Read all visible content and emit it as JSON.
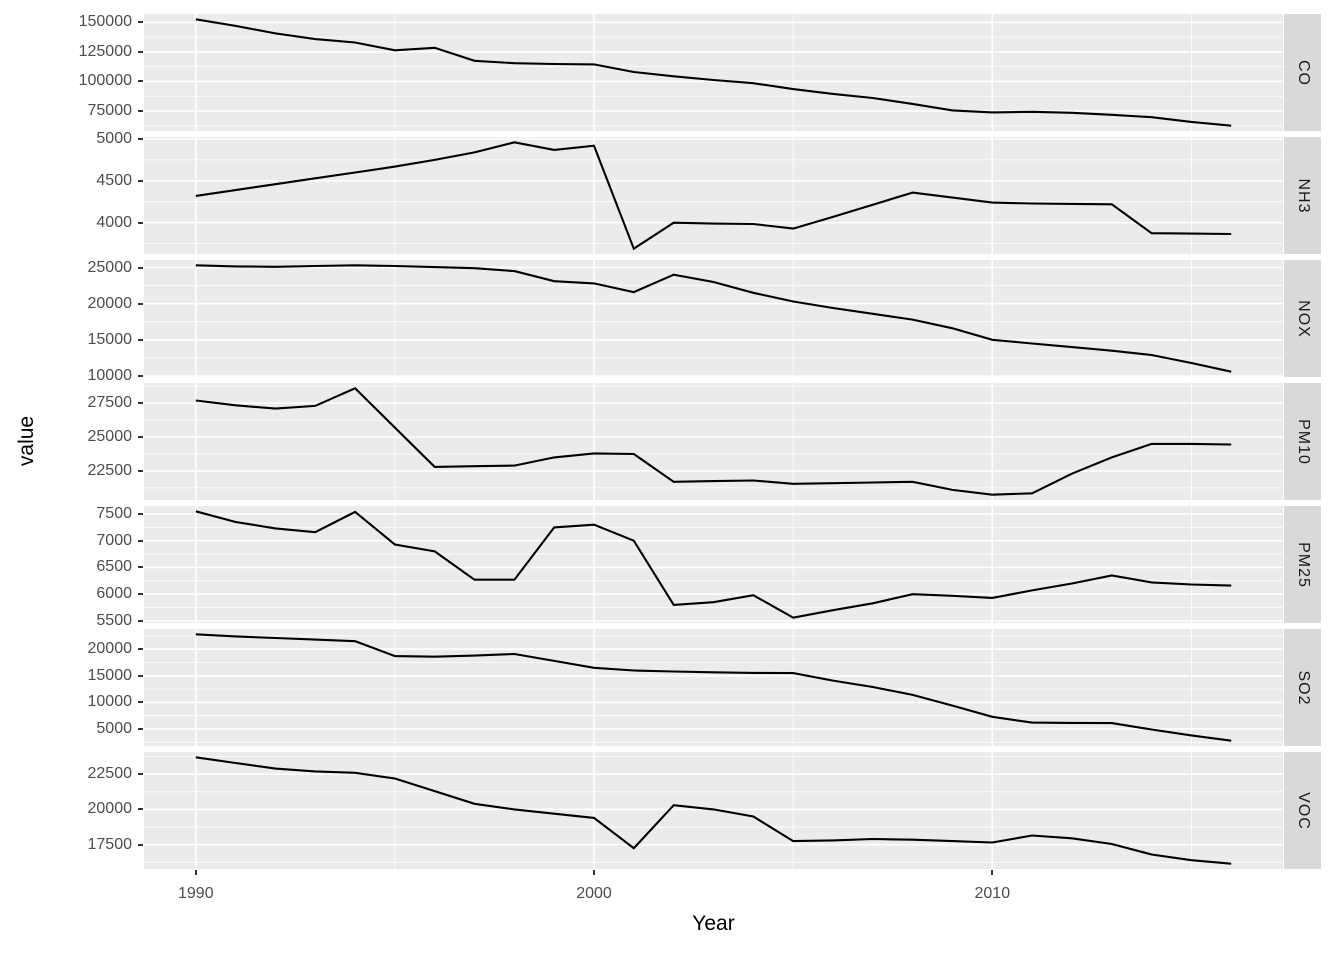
{
  "figure": {
    "y_axis_title": "value",
    "x_axis_title": "Year",
    "x_tick_labels": [
      "1990",
      "2000",
      "2010"
    ],
    "x_tick_values": [
      1990,
      2000,
      2010
    ]
  },
  "colors": {
    "background": "#FFFFFF",
    "panel_background": "#EBEBEB",
    "grid_major": "#FFFFFF",
    "grid_minor": "#FFFFFF",
    "strip_background": "#D9D9D9",
    "strip_text": "#1A1A1A",
    "axis_text": "#4D4D4D",
    "axis_title": "#000000",
    "tick_mark": "#333333",
    "line": "#000000"
  },
  "chart_data": {
    "type": "line",
    "title": "",
    "xlabel": "Year",
    "ylabel": "value",
    "legend": "none",
    "facet_strip_position": "right",
    "grid": "major-and-minor-white-on-grey",
    "xlim": [
      1988.7,
      2017.3
    ],
    "x_major_gridlines": [
      1990,
      2000,
      2010
    ],
    "x_minor_gridlines": [
      1995,
      2005,
      2015
    ],
    "x": [
      1990,
      1991,
      1992,
      1993,
      1994,
      1995,
      1996,
      1997,
      1998,
      1999,
      2000,
      2001,
      2002,
      2003,
      2004,
      2005,
      2006,
      2007,
      2008,
      2009,
      2010,
      2011,
      2012,
      2013,
      2014,
      2015,
      2016
    ],
    "facets": [
      {
        "label": "CO",
        "ytick_values": [
          75000,
          100000,
          125000,
          150000
        ],
        "ytick_labels": [
          "75000",
          "100000",
          "125000",
          "150000"
        ],
        "values": [
          152500,
          146900,
          140600,
          135800,
          132900,
          126300,
          128400,
          117400,
          115400,
          114700,
          114400,
          108000,
          104300,
          101200,
          98500,
          93500,
          89500,
          86000,
          81000,
          75500,
          73800,
          74300,
          73500,
          71800,
          69800,
          65800,
          62600
        ]
      },
      {
        "label": "NH3",
        "ytick_values": [
          4000,
          4500,
          5000
        ],
        "ytick_labels": [
          "4000",
          "4500",
          "5000"
        ],
        "values": [
          4320,
          4390,
          4460,
          4530,
          4600,
          4670,
          4750,
          4840,
          4960,
          4870,
          4920,
          3690,
          4000,
          3990,
          3985,
          3930,
          4070,
          4215,
          4360,
          4300,
          4240,
          4230,
          4225,
          4220,
          3875,
          3870,
          3865
        ]
      },
      {
        "label": "NOX",
        "ytick_values": [
          10000,
          15000,
          20000,
          25000
        ],
        "ytick_labels": [
          "10000",
          "15000",
          "20000",
          "25000"
        ],
        "values": [
          25300,
          25150,
          25100,
          25200,
          25300,
          25200,
          25050,
          24900,
          24500,
          23100,
          22800,
          21600,
          24000,
          23000,
          21500,
          20300,
          19400,
          18600,
          17800,
          16600,
          15000,
          14500,
          14000,
          13500,
          12900,
          11800,
          10600
        ]
      },
      {
        "label": "PM10",
        "ytick_values": [
          22500,
          25000,
          27500
        ],
        "ytick_labels": [
          "22500",
          "25000",
          "27500"
        ],
        "values": [
          27700,
          27350,
          27100,
          27300,
          28600,
          25700,
          22800,
          22850,
          22900,
          23500,
          23800,
          23750,
          21700,
          21750,
          21800,
          21550,
          21600,
          21650,
          21700,
          21100,
          20750,
          20850,
          22300,
          23500,
          24500,
          24500,
          24450
        ]
      },
      {
        "label": "PM25",
        "ytick_values": [
          5500,
          6000,
          6500,
          7000,
          7500
        ],
        "ytick_labels": [
          "5500",
          "6000",
          "6500",
          "7000",
          "7500"
        ],
        "values": [
          7550,
          7350,
          7230,
          7160,
          7540,
          6930,
          6800,
          6270,
          6270,
          7250,
          7300,
          7000,
          5800,
          5850,
          5980,
          5560,
          5700,
          5830,
          6000,
          5970,
          5930,
          6070,
          6200,
          6350,
          6220,
          6180,
          6160
        ]
      },
      {
        "label": "SO2",
        "ytick_values": [
          5000,
          10000,
          15000,
          20000
        ],
        "ytick_labels": [
          "5000",
          "10000",
          "15000",
          "20000"
        ],
        "values": [
          22800,
          22400,
          22100,
          21800,
          21500,
          18700,
          18600,
          18800,
          19100,
          17800,
          16500,
          16000,
          15800,
          15650,
          15550,
          15500,
          14100,
          12900,
          11400,
          9400,
          7300,
          6200,
          6150,
          6100,
          4900,
          3800,
          2800
        ]
      },
      {
        "label": "VOC",
        "ytick_values": [
          17500,
          20000,
          22500
        ],
        "ytick_labels": [
          "17500",
          "20000",
          "22500"
        ],
        "values": [
          23700,
          23300,
          22900,
          22700,
          22600,
          22200,
          21300,
          20400,
          20000,
          19700,
          19400,
          17250,
          20300,
          20000,
          19500,
          17750,
          17800,
          17900,
          17850,
          17750,
          17650,
          18150,
          17950,
          17550,
          16800,
          16400,
          16150
        ]
      }
    ]
  }
}
